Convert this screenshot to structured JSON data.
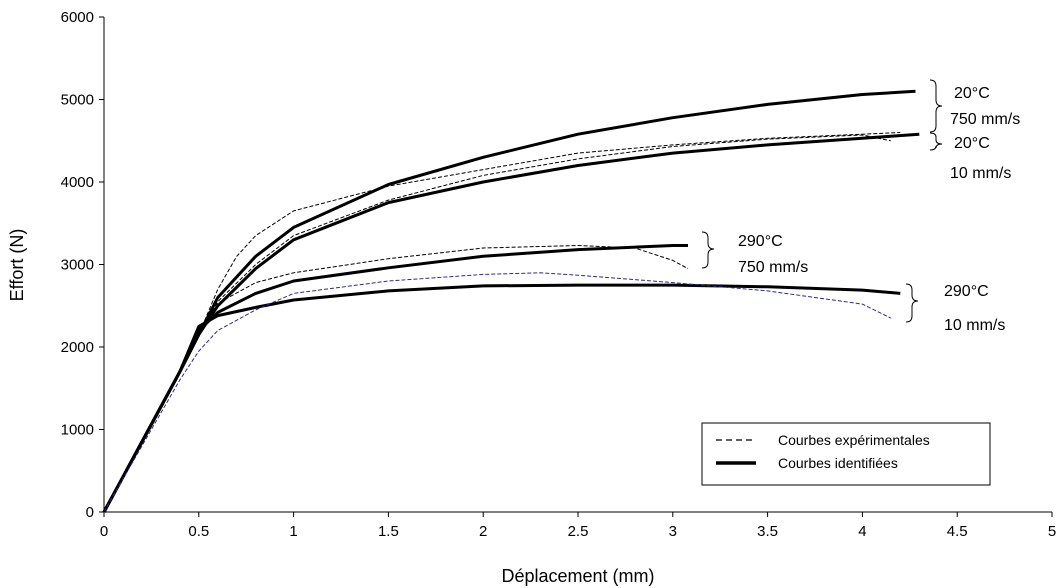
{
  "chart_data": {
    "type": "line",
    "title": "",
    "xlabel": "Déplacement (mm)",
    "ylabel": "Effort (N)",
    "xlim": [
      0,
      5
    ],
    "ylim": [
      0,
      6000
    ],
    "xticks": [
      "0",
      "0.5",
      "1",
      "1.5",
      "2",
      "2.5",
      "3",
      "3.5",
      "4",
      "4.5",
      "5"
    ],
    "yticks": [
      "0",
      "1000",
      "2000",
      "3000",
      "4000",
      "5000",
      "6000"
    ],
    "grid": false,
    "legend_position": "bottom-right",
    "legend": [
      {
        "label": "Courbes expérimentales",
        "style": "dashed"
      },
      {
        "label": "Courbes identifiées",
        "style": "solid"
      }
    ],
    "annotations": [
      {
        "lines": [
          "20°C",
          "750 mm/s"
        ]
      },
      {
        "lines": [
          "20°C",
          "10 mm/s"
        ]
      },
      {
        "lines": [
          "290°C",
          "750 mm/s"
        ]
      },
      {
        "lines": [
          "290°C",
          "10 mm/s"
        ]
      }
    ],
    "series": [
      {
        "kind": "identified",
        "color": "#000000",
        "x": [
          0,
          0.2,
          0.4,
          0.5,
          0.6,
          0.8,
          1.0,
          1.5,
          2.0,
          2.5,
          3.0,
          3.5,
          4.0,
          4.28
        ],
        "y": [
          0,
          850,
          1700,
          2150,
          2600,
          3100,
          3450,
          3970,
          4300,
          4580,
          4780,
          4940,
          5060,
          5100
        ]
      },
      {
        "kind": "identified",
        "color": "#000000",
        "x": [
          0,
          0.2,
          0.4,
          0.5,
          0.6,
          0.8,
          1.0,
          1.5,
          2.0,
          2.5,
          3.0,
          3.5,
          4.0,
          4.3
        ],
        "y": [
          0,
          850,
          1700,
          2150,
          2500,
          2950,
          3300,
          3750,
          4000,
          4200,
          4350,
          4450,
          4530,
          4580
        ]
      },
      {
        "kind": "identified",
        "color": "#000000",
        "x": [
          0,
          0.2,
          0.4,
          0.5,
          0.6,
          0.8,
          1.0,
          1.5,
          2.0,
          2.5,
          3.0,
          3.08
        ],
        "y": [
          0,
          850,
          1700,
          2200,
          2420,
          2650,
          2800,
          2960,
          3100,
          3180,
          3230,
          3230
        ]
      },
      {
        "kind": "identified",
        "color": "#000000",
        "x": [
          0,
          0.2,
          0.4,
          0.5,
          0.6,
          0.8,
          1.0,
          1.5,
          2.0,
          2.5,
          3.0,
          3.5,
          4.0,
          4.2
        ],
        "y": [
          0,
          850,
          1700,
          2250,
          2380,
          2480,
          2570,
          2680,
          2740,
          2750,
          2750,
          2730,
          2690,
          2650
        ]
      },
      {
        "kind": "experimental",
        "color": "#000000",
        "x": [
          0,
          0.2,
          0.4,
          0.5,
          0.6,
          0.7,
          0.8,
          1.0,
          1.5,
          2.0,
          2.5,
          3.0,
          3.5,
          4.0,
          4.2
        ],
        "y": [
          0,
          850,
          1700,
          2150,
          2700,
          3100,
          3350,
          3650,
          3950,
          4150,
          4350,
          4450,
          4530,
          4580,
          4600
        ]
      },
      {
        "kind": "experimental",
        "color": "#000000",
        "x": [
          0,
          0.2,
          0.4,
          0.5,
          0.6,
          0.8,
          1.0,
          1.5,
          2.0,
          2.5,
          3.0,
          3.5,
          4.0,
          4.15
        ],
        "y": [
          0,
          850,
          1700,
          2150,
          2550,
          3000,
          3350,
          3780,
          4080,
          4280,
          4430,
          4520,
          4570,
          4500
        ]
      },
      {
        "kind": "experimental",
        "color": "#000000",
        "x": [
          0,
          0.2,
          0.4,
          0.5,
          0.6,
          0.8,
          1.0,
          1.5,
          2.0,
          2.5,
          2.8,
          3.0,
          3.08
        ],
        "y": [
          0,
          850,
          1700,
          2200,
          2530,
          2780,
          2900,
          3070,
          3200,
          3230,
          3200,
          3050,
          2950
        ]
      },
      {
        "kind": "experimental",
        "color": "#2b2b8c",
        "x": [
          0,
          0.2,
          0.4,
          0.5,
          0.6,
          0.8,
          1.0,
          1.5,
          2.0,
          2.3,
          2.5,
          3.0,
          3.5,
          4.0,
          4.15
        ],
        "y": [
          0,
          800,
          1600,
          1950,
          2200,
          2450,
          2650,
          2800,
          2880,
          2900,
          2870,
          2780,
          2680,
          2520,
          2350
        ]
      }
    ]
  }
}
